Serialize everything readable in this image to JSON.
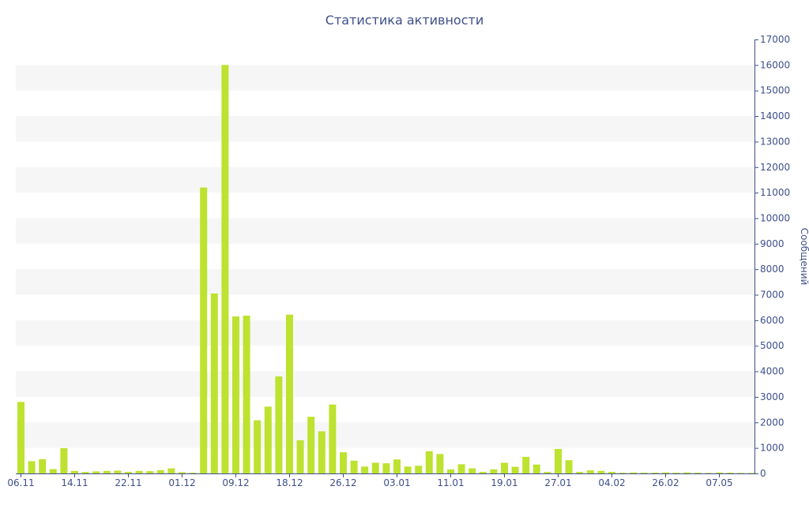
{
  "chart_data": {
    "type": "bar",
    "title": "Статистика активности",
    "ylabel": "Сообщений",
    "y_axis_position": "right",
    "ylim": [
      0,
      17000
    ],
    "y_ticks": [
      0,
      1000,
      2000,
      3000,
      4000,
      5000,
      6000,
      7000,
      8000,
      9000,
      10000,
      11000,
      12000,
      13000,
      14000,
      15000,
      16000,
      17000
    ],
    "x_tick_labels": [
      {
        "label": "06.11",
        "index": 0
      },
      {
        "label": "14.11",
        "index": 5
      },
      {
        "label": "22.11",
        "index": 10
      },
      {
        "label": "01.12",
        "index": 15
      },
      {
        "label": "09.12",
        "index": 20
      },
      {
        "label": "18.12",
        "index": 25
      },
      {
        "label": "26.12",
        "index": 30
      },
      {
        "label": "03.01",
        "index": 35
      },
      {
        "label": "11.01",
        "index": 40
      },
      {
        "label": "19.01",
        "index": 45
      },
      {
        "label": "27.01",
        "index": 50
      },
      {
        "label": "04.02",
        "index": 55
      },
      {
        "label": "26.02",
        "index": 60
      },
      {
        "label": "07.05",
        "index": 65
      }
    ],
    "grid": "alternating horizontal bands",
    "bar_color": "#bde22f",
    "band_color": "#f6f6f6",
    "text_color": "#3e4f8a",
    "series": [
      {
        "values": [
          2800,
          480,
          560,
          170,
          990,
          100,
          60,
          80,
          100,
          110,
          60,
          100,
          90,
          130,
          200,
          50,
          30,
          11200,
          7050,
          16000,
          6150,
          6180,
          2080,
          2620,
          3800,
          6220,
          1300,
          2220,
          1650,
          2700,
          830,
          500,
          270,
          420,
          400,
          550,
          270,
          300,
          870,
          760,
          160,
          360,
          200,
          60,
          160,
          420,
          260,
          650,
          350,
          60,
          960,
          520,
          60,
          120,
          100,
          60,
          30,
          40,
          30,
          30,
          40,
          30,
          40,
          30,
          20,
          40,
          30,
          20,
          20
        ]
      }
    ]
  }
}
